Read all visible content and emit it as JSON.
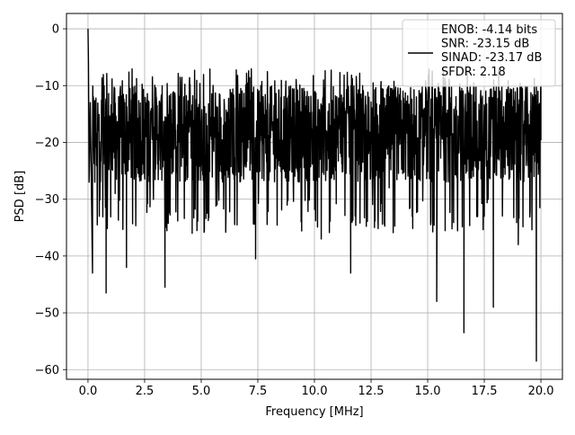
{
  "chart_data": {
    "type": "line",
    "title": "",
    "xlabel": "Frequency [MHz]",
    "ylabel": "PSD [dB]",
    "xlim": [
      -0.95,
      20.95
    ],
    "ylim": [
      -61.7,
      2.7
    ],
    "xticks": [
      0.0,
      2.5,
      5.0,
      7.5,
      10.0,
      12.5,
      15.0,
      17.5,
      20.0
    ],
    "xtick_labels": [
      "0.0",
      "2.5",
      "5.0",
      "7.5",
      "10.0",
      "12.5",
      "15.0",
      "17.5",
      "20.0"
    ],
    "yticks": [
      0,
      -10,
      -20,
      -30,
      -40,
      -50,
      -60
    ],
    "ytick_labels": [
      "0",
      "−10",
      "−20",
      "−30",
      "−40",
      "−50",
      "−60"
    ],
    "grid": true,
    "legend_position": "top-right",
    "series": [
      {
        "name": "ENOB: -4.14 bits\nSNR: -23.15 dB\nSINAD: -23.17 dB\nSFDR: 2.18",
        "color": "#000000",
        "x": [
          0.0,
          0.02,
          0.05,
          0.1,
          0.2,
          0.3,
          0.5,
          0.8,
          1.2,
          1.7,
          2.5,
          3.4,
          4.6,
          5.7,
          7.2,
          7.4,
          8.8,
          10.3,
          11.6,
          13.3,
          15.4,
          16.6,
          17.5,
          17.9,
          19.0,
          19.8,
          20.0
        ],
        "y": [
          0,
          -6,
          -27,
          -13,
          -43,
          -27,
          -33,
          -46.5,
          -29,
          -42,
          -26,
          -45.5,
          -36,
          -31,
          -20,
          -40.5,
          -29,
          -37,
          -43,
          -28,
          -48,
          -53.5,
          -33,
          -49,
          -38,
          -58.5,
          -10
        ],
        "noise_band": {
          "upper": -10,
          "lower": -30,
          "dense_from": 0.2,
          "dense_to": 20.0
        }
      }
    ],
    "legend_lines": [
      "ENOB: -4.14 bits",
      "SNR: -23.15 dB",
      "SINAD: -23.17 dB",
      "SFDR: 2.18"
    ]
  }
}
